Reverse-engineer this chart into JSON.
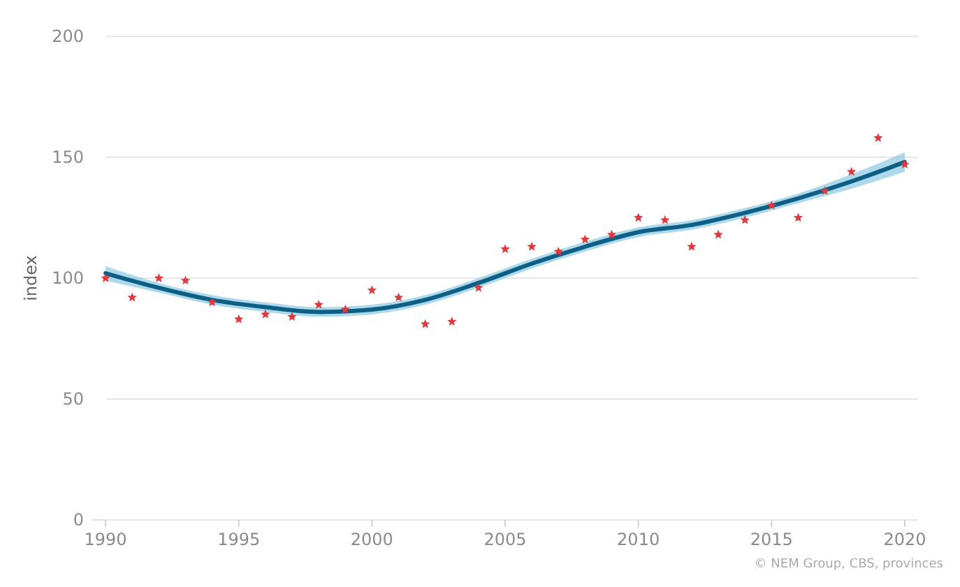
{
  "chart_data": {
    "type": "scatter",
    "ylabel": "index",
    "x": [
      1990,
      1991,
      1992,
      1993,
      1994,
      1995,
      1996,
      1997,
      1998,
      1999,
      2000,
      2001,
      2002,
      2003,
      2004,
      2005,
      2006,
      2007,
      2008,
      2009,
      2010,
      2011,
      2012,
      2013,
      2014,
      2015,
      2016,
      2017,
      2018,
      2019,
      2020
    ],
    "series": [
      {
        "color": "#e0393e",
        "marker": "star",
        "values": [
          100,
          92,
          100,
          99,
          90,
          83,
          85,
          84,
          89,
          87,
          95,
          92,
          81,
          82,
          96,
          112,
          113,
          111,
          116,
          118,
          125,
          124,
          113,
          118,
          124,
          130,
          125,
          136,
          144,
          158,
          147
        ]
      },
      {
        "type": "line",
        "color": "#0d5f86",
        "x": [
          1990,
          1992,
          1994,
          1996,
          1998,
          2000,
          2002,
          2004,
          2006,
          2008,
          2010,
          2012,
          2014,
          2016,
          2018,
          2020
        ],
        "values": [
          102,
          96,
          91,
          88,
          86,
          87,
          91,
          98,
          106,
          113,
          119,
          122,
          127,
          133,
          140,
          148
        ],
        "lower": [
          99,
          94,
          89,
          86,
          84,
          85,
          89,
          96,
          104,
          111,
          117,
          120,
          125,
          131,
          137,
          144
        ],
        "upper": [
          105,
          98,
          93,
          90,
          88,
          89,
          93,
          100,
          108,
          115,
          121,
          124,
          129,
          135,
          143,
          152
        ]
      }
    ],
    "xlim": [
      1989.5,
      2020.5
    ],
    "xticks": [
      1990,
      1995,
      2000,
      2005,
      2010,
      2015,
      2020
    ],
    "ylim": [
      0,
      200
    ],
    "yticks": [
      0,
      50,
      100,
      150,
      200
    ],
    "grid": "y",
    "annotations": [
      "© NEM Group, CBS, provinces"
    ]
  }
}
